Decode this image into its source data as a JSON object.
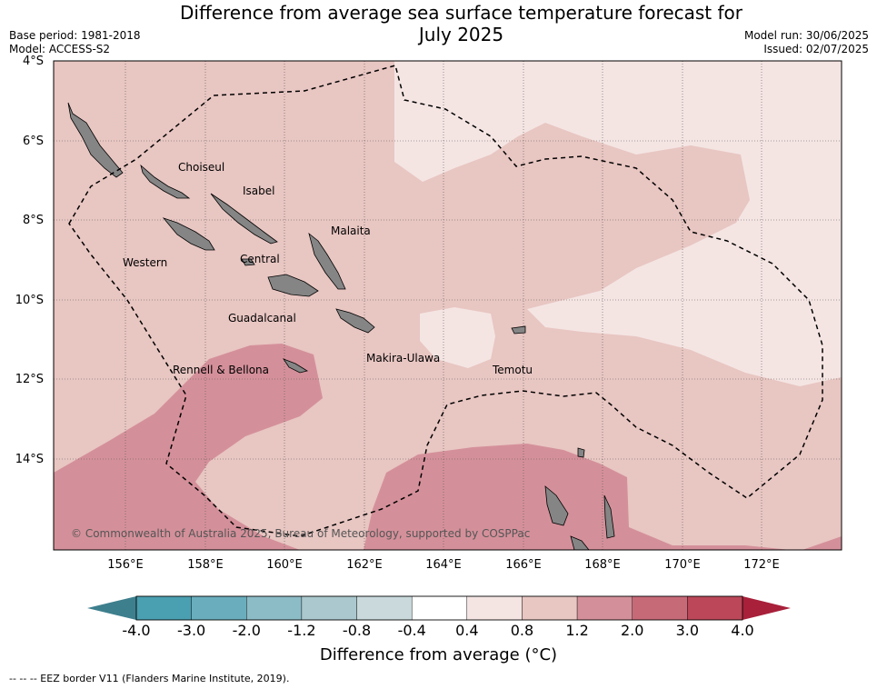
{
  "title_line1": "Difference from average sea surface temperature forecast for",
  "title_line2": "July 2025",
  "base_period": "Base period: 1981-2018",
  "model": "Model: ACCESS-S2",
  "model_run": "Model run: 30/06/2025",
  "issued": "Issued: 02/07/2025",
  "lat_labels": [
    "4°S",
    "6°S",
    "8°S",
    "10°S",
    "12°S",
    "14°S"
  ],
  "lon_labels": [
    "156°E",
    "158°E",
    "160°E",
    "162°E",
    "164°E",
    "166°E",
    "168°E",
    "170°E",
    "172°E"
  ],
  "province_labels": {
    "choiseul": "Choiseul",
    "isabel": "Isabel",
    "malaita": "Malaita",
    "western": "Western",
    "central": "Central",
    "guadalcanal": "Guadalcanal",
    "makira": "Makira-Ulawa",
    "rennell": "Rennell & Bellona",
    "temotu": "Temotu"
  },
  "copyright": "© Commonwealth of Australia 2025, Bureau of Meteorology, supported by COSPPac",
  "colorbar": {
    "ticks": [
      "-4.0",
      "-3.0",
      "-2.0",
      "-1.2",
      "-0.8",
      "-0.4",
      "0.4",
      "0.8",
      "1.2",
      "2.0",
      "3.0",
      "4.0"
    ],
    "colors": [
      "#4a9fb0",
      "#6aaebd",
      "#8cbcc6",
      "#aac8cd",
      "#c9d9dc",
      "#ffffff",
      "#f4e5e3",
      "#e8c6c2",
      "#d4909a",
      "#c76a78",
      "#bb4758"
    ],
    "low_extend_color": "#3e7f8d",
    "high_extend_color": "#a8203a",
    "title": "Difference from average (°C)"
  },
  "legend_footer": "--  --  -- EEZ border V11 (Flanders Marine Institute, 2019)."
}
